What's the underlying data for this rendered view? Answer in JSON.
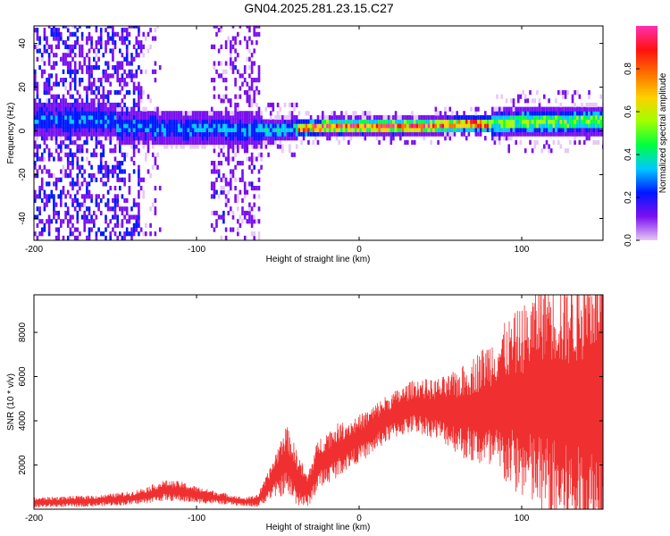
{
  "title": "GN04.2025.281.23.15.C27",
  "chart_data": [
    {
      "type": "heatmap",
      "xlabel": "Height of straight line (km)",
      "ylabel": "Frequency (Hz)",
      "xlim": [
        -200,
        150
      ],
      "ylim": [
        -50,
        48
      ],
      "xticks": [
        -200,
        -100,
        0,
        100
      ],
      "yticks": [
        -40,
        -20,
        0,
        20,
        40
      ],
      "colorbar": {
        "label": "Normalized spectral amplitude",
        "range": [
          0,
          1
        ],
        "ticks": [
          "0.0",
          "0.2",
          "0.4",
          "0.6",
          "0.8"
        ],
        "tick_values": [
          0.0,
          0.2,
          0.4,
          0.6,
          0.8
        ],
        "colormap": [
          "#e6c8f5",
          "#7a10f0",
          "#0018ff",
          "#00c8ff",
          "#00ff40",
          "#a0ff00",
          "#ffd000",
          "#ff7000",
          "#ff1010",
          "#ff30b0"
        ]
      },
      "description_points": {
        "noise_band_x": [
          -200,
          -135
        ],
        "noise_band2_x": [
          -92,
          -62
        ],
        "signal_center_hz": [
          [
            -150,
            1
          ],
          [
            -120,
            0
          ],
          [
            -90,
            0
          ],
          [
            -60,
            -1
          ],
          [
            -40,
            0
          ],
          [
            -20,
            1
          ],
          [
            0,
            1
          ],
          [
            20,
            1
          ],
          [
            40,
            1
          ],
          [
            60,
            2
          ],
          [
            80,
            2
          ],
          [
            100,
            3
          ],
          [
            120,
            3
          ],
          [
            150,
            4
          ]
        ]
      }
    },
    {
      "type": "line",
      "color": "#f03030",
      "xlabel": "Height of straight line (km)",
      "ylabel": "SNR (10 * v/v)",
      "xlim": [
        -200,
        150
      ],
      "ylim": [
        0,
        9700
      ],
      "xticks": [
        -200,
        -100,
        0,
        100
      ],
      "yticks": [
        2000,
        4000,
        6000,
        8000
      ],
      "envelope": [
        [
          -200,
          150,
          450
        ],
        [
          -180,
          180,
          500
        ],
        [
          -160,
          220,
          550
        ],
        [
          -140,
          300,
          700
        ],
        [
          -130,
          400,
          900
        ],
        [
          -120,
          550,
          1150
        ],
        [
          -110,
          500,
          1100
        ],
        [
          -100,
          400,
          900
        ],
        [
          -90,
          350,
          750
        ],
        [
          -80,
          280,
          600
        ],
        [
          -70,
          200,
          450
        ],
        [
          -62,
          200,
          600
        ],
        [
          -55,
          700,
          1600
        ],
        [
          -45,
          1200,
          3300
        ],
        [
          -38,
          600,
          2200
        ],
        [
          -32,
          300,
          1300
        ],
        [
          -25,
          1300,
          2800
        ],
        [
          -15,
          1800,
          3400
        ],
        [
          -5,
          2300,
          3700
        ],
        [
          5,
          2700,
          4100
        ],
        [
          15,
          3300,
          4700
        ],
        [
          25,
          3700,
          5100
        ],
        [
          35,
          3900,
          5500
        ],
        [
          45,
          3700,
          5400
        ],
        [
          55,
          3400,
          5500
        ],
        [
          65,
          3000,
          5800
        ],
        [
          75,
          2800,
          6300
        ],
        [
          85,
          2500,
          6900
        ],
        [
          95,
          2200,
          7400
        ],
        [
          105,
          1800,
          7900
        ],
        [
          115,
          1300,
          9000
        ],
        [
          125,
          900,
          8400
        ],
        [
          135,
          600,
          8800
        ],
        [
          145,
          500,
          9600
        ],
        [
          150,
          600,
          9400
        ]
      ]
    }
  ]
}
